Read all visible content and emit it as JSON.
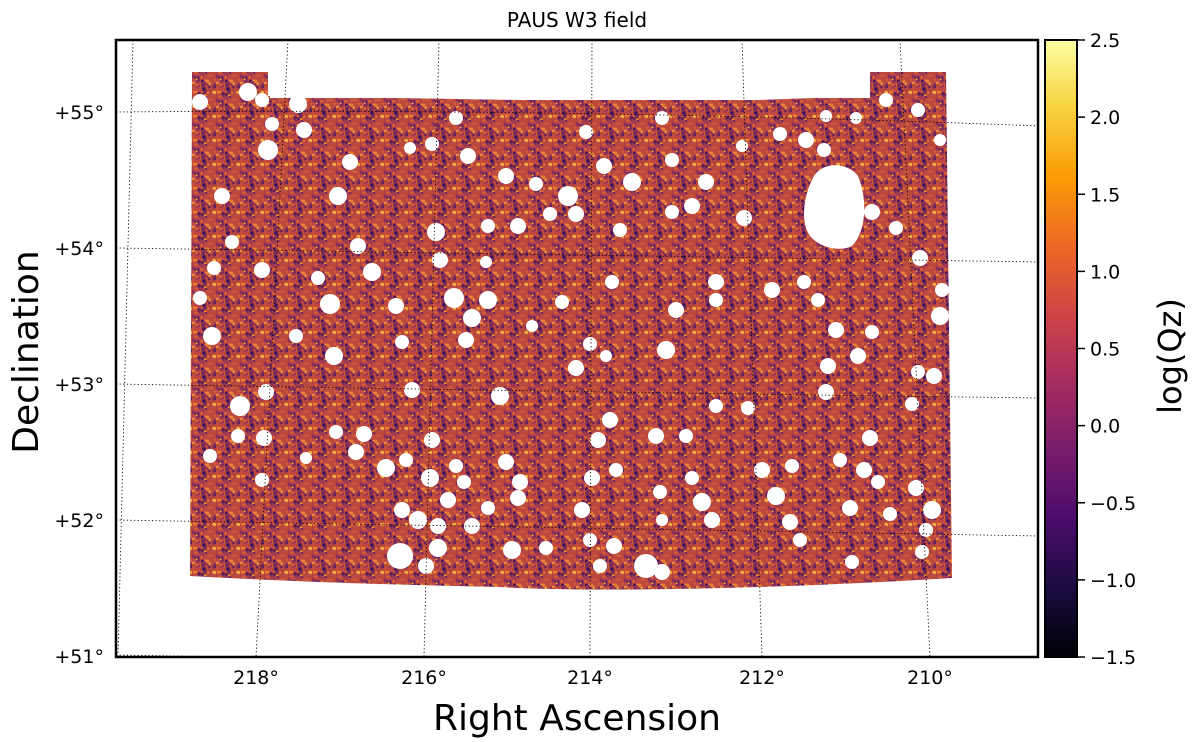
{
  "chart_data": {
    "type": "scatter",
    "title": "PAUS W3 field",
    "xlabel": "Right Ascension",
    "ylabel": "Declination",
    "projection": "sky (curved RA/Dec graticule)",
    "x_ticks": [
      "218°",
      "216°",
      "214°",
      "212°",
      "210°"
    ],
    "x_tick_values": [
      218,
      216,
      214,
      212,
      210
    ],
    "y_ticks": [
      "+51°",
      "+52°",
      "+53°",
      "+54°",
      "+55°"
    ],
    "y_tick_values": [
      51,
      52,
      53,
      54,
      55
    ],
    "xlim": [
      219.6,
      208.6
    ],
    "ylim": [
      51.0,
      55.5
    ],
    "field_extent": {
      "ra": [
        209.8,
        218.8
      ],
      "dec": [
        51.5,
        55.3
      ]
    },
    "grid": true,
    "colorbar": {
      "label": "log(Qz)",
      "colormap": "inferno",
      "range": [
        -1.5,
        2.5
      ],
      "ticks": [
        "2.5",
        "2.0",
        "1.5",
        "1.0",
        "0.5",
        "0.0",
        "−0.5",
        "−1.0",
        "−1.5"
      ],
      "tick_values": [
        2.5,
        2.0,
        1.5,
        1.0,
        0.5,
        0.0,
        -0.5,
        -1.0,
        -1.5
      ]
    },
    "color_distribution": "mostly log(Qz) between 0.0 and 1.5 (purple/red/orange points); dense uniform coverage",
    "masked_regions": "many circular star masks (white holes) plus one large irregular mask near RA 211, Dec +54.3"
  }
}
